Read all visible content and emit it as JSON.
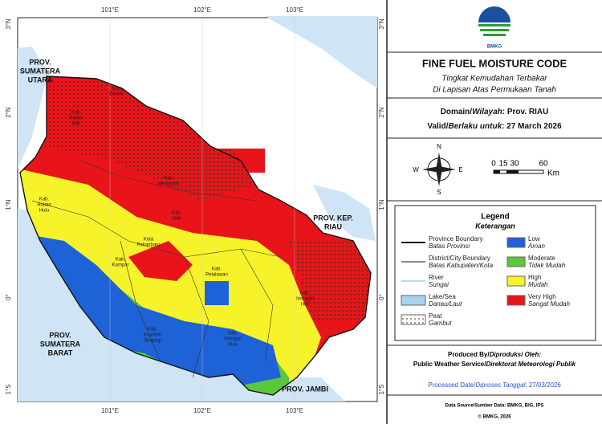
{
  "map": {
    "lon_labels": [
      "101°E",
      "102°E",
      "103°E"
    ],
    "lat_labels": [
      "3°N",
      "2°N",
      "1°N",
      "0°",
      "1°S"
    ],
    "provinces": [
      [
        "PROV.",
        "SUMATERA",
        "UTARA"
      ],
      [
        "PROV.",
        "SUMATERA",
        "BARAT"
      ],
      [
        "PROV. JAMBI"
      ],
      [
        "PROV. KEP.",
        "RIAU"
      ]
    ],
    "regencies": [
      [
        "Kab.",
        "Rokan",
        "Hulu"
      ],
      [
        "Kab.",
        "Kampar"
      ],
      [
        "Kab.",
        "Kuantan",
        "Singingi"
      ],
      [
        "Kab.",
        "Indragiri",
        "Hulu"
      ],
      [
        "Kab.",
        "Indragiri",
        "Hilir"
      ],
      [
        "Kab.",
        "Pelalawan"
      ],
      [
        "Kota",
        "Pekanbaru"
      ],
      [
        "Kab.",
        "Siak"
      ],
      [
        "Kab.",
        "Bengkalis"
      ],
      [
        "Kab.",
        "Rokan",
        "Hilir"
      ],
      [
        "Kota",
        "Dumai"
      ]
    ]
  },
  "header": {
    "logo": "BMKG",
    "title": "FINE FUEL MOISTURE CODE",
    "subtitle": [
      "Tingkat Kemudahan Terbakar",
      "Di Lapisan Atas Permukaan Tanah"
    ],
    "domain": {
      "label": "Domain/",
      "label_id": "Wilayah",
      "value": ": Prov. RIAU"
    },
    "valid": {
      "label": "Valid/",
      "label_id": "Berlaku untuk",
      "value": ": 27 March 2026"
    }
  },
  "compass": {
    "n": "N",
    "s": "S",
    "e": "E",
    "w": "W"
  },
  "scale": {
    "labels": [
      0,
      15,
      30,
      60
    ],
    "unit": "Km"
  },
  "legend": {
    "title": "Legend",
    "subtitle": "Keterangan",
    "lines": [
      {
        "name": "Province Boundary",
        "name_id": "Batas Provinsi"
      },
      {
        "name": "District/City Boundary",
        "name_id": "Batas Kabupaten/Kota"
      },
      {
        "name": "River",
        "name_id": "Sungai"
      },
      {
        "name": "Lake/Sea",
        "name_id": "Danau/Laut"
      },
      {
        "name": "Peat",
        "name_id": "Gambut"
      }
    ],
    "classes": [
      {
        "name": "Low",
        "name_id": "Aman",
        "color": "#1e62d8"
      },
      {
        "name": "Moderate",
        "name_id": "Tidak Mudah",
        "color": "#5ac83a"
      },
      {
        "name": "High",
        "name_id": "Mudah",
        "color": "#f7f32a"
      },
      {
        "name": "Very High",
        "name_id": "Sangat Mudah",
        "color": "#e8141a"
      }
    ]
  },
  "footer": {
    "produced_by": "Produced By/",
    "produced_by_id": "Diproduksi Oleh:",
    "producer": "Public Weather Service/",
    "producer_id": "Direktorat Meteorologi Publik",
    "processed": {
      "label": "Processed Date/",
      "label_id": "Diproses Tanggal",
      "value": ": 27/03/2026"
    },
    "source": "Data Source/Sumber Data: BMKG, BIG, IPS",
    "copyright": "© BMKG, 2026"
  }
}
